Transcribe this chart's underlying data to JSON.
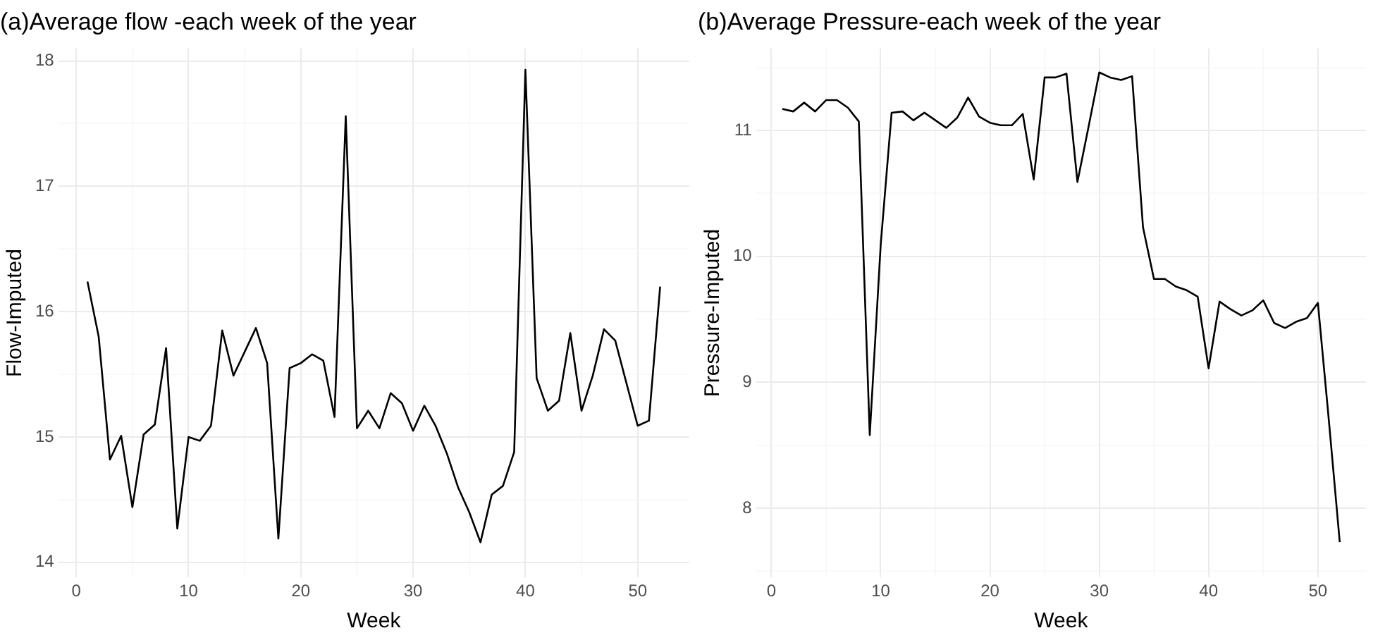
{
  "chart_data": [
    {
      "type": "line",
      "title": "(a)Average flow -each week of the year",
      "xlabel": "Week",
      "ylabel": "Flow-Imputed",
      "grid": true,
      "legend": false,
      "marker": "none",
      "line_style": "solid",
      "x": [
        1,
        2,
        3,
        4,
        5,
        6,
        7,
        8,
        9,
        10,
        11,
        12,
        13,
        14,
        15,
        16,
        17,
        18,
        19,
        20,
        21,
        22,
        23,
        24,
        25,
        26,
        27,
        28,
        29,
        30,
        31,
        32,
        33,
        34,
        35,
        36,
        37,
        38,
        39,
        40,
        41,
        42,
        43,
        44,
        45,
        46,
        47,
        48,
        49,
        50,
        51,
        52
      ],
      "series": [
        {
          "color": "#000000",
          "values": [
            16.24,
            15.8,
            14.82,
            15.01,
            14.44,
            15.02,
            15.1,
            15.71,
            14.27,
            15.0,
            14.97,
            15.09,
            15.85,
            15.49,
            15.68,
            15.87,
            15.59,
            14.19,
            15.55,
            15.59,
            15.66,
            15.61,
            15.16,
            17.56,
            15.07,
            15.21,
            15.07,
            15.35,
            15.27,
            15.05,
            15.25,
            15.09,
            14.87,
            14.6,
            14.4,
            14.16,
            14.54,
            14.61,
            14.88,
            17.93,
            15.47,
            15.21,
            15.29,
            15.83,
            15.21,
            15.49,
            15.86,
            15.77,
            15.43,
            15.09,
            15.13,
            16.2
          ]
        }
      ],
      "xlim": [
        -1.6,
        54.6
      ],
      "xticks": [
        0,
        {
          "value": 5,
          "label": null
        },
        10,
        {
          "value": 15,
          "label": null
        },
        20,
        {
          "value": 25,
          "label": null
        },
        30,
        {
          "value": 35,
          "label": null
        },
        40,
        {
          "value": 45,
          "label": null
        },
        50
      ],
      "ylim": [
        13.88,
        18.1
      ],
      "yticks": [
        14,
        {
          "value": 14.5,
          "label": null
        },
        15,
        {
          "value": 15.5,
          "label": null
        },
        16,
        {
          "value": 16.5,
          "label": null
        },
        17,
        {
          "value": 17.5,
          "label": null
        },
        18
      ]
    },
    {
      "type": "line",
      "title": "(b)Average Pressure-each week of the year",
      "xlabel": "Week",
      "ylabel": "Pressure-Imputed",
      "grid": true,
      "legend": false,
      "marker": "none",
      "line_style": "solid",
      "x": [
        1,
        2,
        3,
        4,
        5,
        6,
        7,
        8,
        9,
        10,
        11,
        12,
        13,
        14,
        15,
        16,
        17,
        18,
        19,
        20,
        21,
        22,
        23,
        24,
        25,
        26,
        27,
        28,
        29,
        30,
        31,
        32,
        33,
        34,
        35,
        36,
        37,
        38,
        39,
        40,
        41,
        42,
        43,
        44,
        45,
        46,
        47,
        48,
        49,
        50,
        51,
        52
      ],
      "series": [
        {
          "color": "#000000",
          "values": [
            11.17,
            11.15,
            11.22,
            11.15,
            11.24,
            11.24,
            11.18,
            11.07,
            8.58,
            10.09,
            11.14,
            11.15,
            11.08,
            11.14,
            11.08,
            11.02,
            11.1,
            11.26,
            11.11,
            11.06,
            11.04,
            11.04,
            11.13,
            10.61,
            11.42,
            11.42,
            11.45,
            10.59,
            11.02,
            11.46,
            11.42,
            11.4,
            11.43,
            10.23,
            9.82,
            9.82,
            9.76,
            9.73,
            9.68,
            9.11,
            9.64,
            9.58,
            9.53,
            9.57,
            9.65,
            9.47,
            9.43,
            9.48,
            9.51,
            9.63,
            8.7,
            7.73
          ]
        }
      ],
      "xlim": [
        -1.4,
        54.4
      ],
      "xticks": [
        0,
        {
          "value": 5,
          "label": null
        },
        10,
        {
          "value": 15,
          "label": null
        },
        20,
        {
          "value": 25,
          "label": null
        },
        30,
        {
          "value": 35,
          "label": null
        },
        40,
        {
          "value": 45,
          "label": null
        },
        50
      ],
      "ylim": [
        7.45,
        11.65
      ],
      "yticks": [
        {
          "value": 7.5,
          "label": null
        },
        8,
        {
          "value": 8.5,
          "label": null
        },
        9,
        {
          "value": 9.5,
          "label": null
        },
        10,
        {
          "value": 10.5,
          "label": null
        },
        11,
        {
          "value": 11.5,
          "label": null
        }
      ]
    }
  ]
}
